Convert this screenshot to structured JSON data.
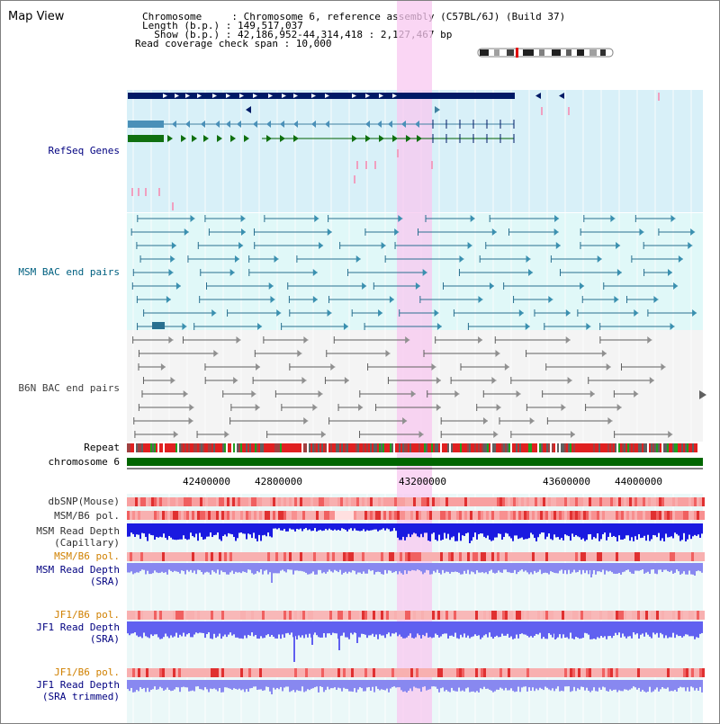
{
  "page": {
    "title": "Map View"
  },
  "info": {
    "lines": [
      "Chromosome     : Chromosome 6, reference assembly (C57BL/6J) (Build 37)",
      "Length (b.p.) : 149,517,037",
      "  Show (b.p.) : 42,186,952-44,314,418 : 2,127,467 bp",
      "Read coverage check span : 10,000"
    ]
  },
  "tracks": {
    "refseq": "RefSeq Genes",
    "msm_bac": "MSM BAC end pairs",
    "b6n_bac": "B6N BAC end pairs",
    "repeat": "Repeat",
    "chromosome": "chromosome 6",
    "dbsnp": "dbSNP(Mouse)",
    "msm_b6_pol_1": "MSM/B6 pol.",
    "msm_depth_cap_1": "MSM Read Depth",
    "msm_depth_cap_2": "(Capillary)",
    "msm_b6_pol_2": "MSM/B6 pol.",
    "msm_depth_sra_1": "MSM Read Depth",
    "msm_depth_sra_2": "(SRA)",
    "jf1_b6_pol_1": "JF1/B6 pol.",
    "jf1_depth_sra_1": "JF1 Read Depth",
    "jf1_depth_sra_2": "(SRA)",
    "jf1_b6_pol_2": "JF1/B6 pol.",
    "jf1_depth_trim_1": "JF1 Read Depth",
    "jf1_depth_trim_2": "(SRA trimmed)"
  },
  "axis": {
    "ticks": [
      "42400000",
      "42800000",
      "43200000",
      "43600000",
      "44000000"
    ]
  },
  "colors": {
    "refseq_label": "#000080",
    "msm_label": "#006080",
    "b6n_label": "#404040",
    "pol_orange": "#d08000",
    "depth_blue": "#000080",
    "highlight": "#f8d8f0",
    "chrom_green": "#006600"
  }
}
